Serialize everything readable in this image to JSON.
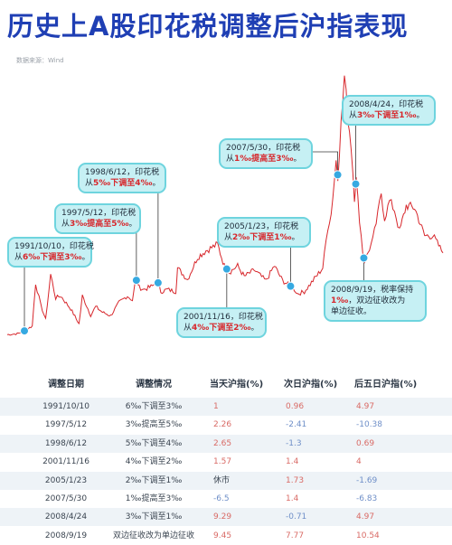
{
  "title": "历史上A股印花税调整后沪指表现",
  "source": "数据来源：Wind",
  "colors": {
    "title": "#1f3fb4",
    "line": "#d7262b",
    "marker": "#36a9e1",
    "bubble_bg": "#c6f0f4",
    "bubble_border": "#6ed4de",
    "up": "#d9534f",
    "down": "#2f6fc4"
  },
  "chart_data": {
    "type": "line",
    "title": "历史上A股印花税调整后沪指表现",
    "xlabel": "",
    "ylabel": "",
    "grid": false,
    "series": [
      {
        "x": [
          "1990/12",
          "1991/6",
          "1991/10",
          "1992/3",
          "1992/5",
          "1992/8",
          "1992/11",
          "1993/2",
          "1993/5",
          "1993/8",
          "1994/2",
          "1994/7",
          "1994/9",
          "1995/2",
          "1995/5",
          "1995/9",
          "1996/2",
          "1996/7",
          "1996/12",
          "1997/3",
          "1997/5",
          "1997/7",
          "1997/10",
          "1998/3",
          "1998/6",
          "1998/8",
          "1998/12",
          "1999/5",
          "1999/6",
          "1999/12",
          "2000/6",
          "2000/11",
          "2001/6",
          "2001/10",
          "2001/11",
          "2002/1",
          "2002/6",
          "2002/10",
          "2003/4",
          "2003/11",
          "2004/4",
          "2004/9",
          "2005/1",
          "2005/4",
          "2005/6",
          "2005/10",
          "2006/4",
          "2006/9",
          "2006/12",
          "2007/2",
          "2007/5",
          "2007/6",
          "2007/8",
          "2007/10",
          "2007/12",
          "2008/2",
          "2008/4",
          "2008/5",
          "2008/7",
          "2008/9",
          "2008/10",
          "2008/12",
          "2009/3",
          "2009/6",
          "2009/8",
          "2009/10",
          "2010/1",
          "2010/4",
          "2010/7",
          "2010/11",
          "2011/4",
          "2011/10",
          "2012/3",
          "2012/9"
        ],
        "values": [
          100,
          120,
          180,
          300,
          1300,
          800,
          450,
          1500,
          950,
          1000,
          700,
          350,
          1000,
          550,
          750,
          620,
          540,
          850,
          1000,
          900,
          1400,
          1200,
          1150,
          1230,
          1350,
          1100,
          1150,
          1100,
          1650,
          1380,
          1900,
          2050,
          2200,
          1700,
          1650,
          1550,
          1700,
          1450,
          1600,
          1350,
          1700,
          1350,
          1250,
          1150,
          1050,
          1100,
          1400,
          1650,
          2600,
          2900,
          4150,
          3800,
          5000,
          6100,
          5200,
          4500,
          3300,
          3700,
          2800,
          2000,
          1800,
          2000,
          2300,
          2900,
          3400,
          2800,
          3200,
          3000,
          2500,
          3100,
          3050,
          2400,
          2400,
          2000
        ]
      }
    ],
    "annotations": [
      {
        "date": "1991/10/10",
        "line1": "1991/10/10，印花税",
        "from": "从",
        "chg": "6‰下调至3‰",
        "end": "。"
      },
      {
        "date": "1997/5/12",
        "line1": "1997/5/12，印花税",
        "from": "从",
        "chg": "3‰提高至5‰",
        "end": "。"
      },
      {
        "date": "1998/6/12",
        "line1": "1998/6/12，印花税",
        "from": "从",
        "chg": "5‰下调至4‰",
        "end": "。"
      },
      {
        "date": "2001/11/16",
        "line1": "2001/11/16，印花税",
        "from": "从",
        "chg": "4‰下调至2‰",
        "end": "。"
      },
      {
        "date": "2005/1/23",
        "line1": "2005/1/23，印花税",
        "from": "从",
        "chg": "2‰下调至1‰",
        "end": "。"
      },
      {
        "date": "2007/5/30",
        "line1": "2007/5/30，印花税",
        "from": "从",
        "chg": "1‰提高至3‰",
        "end": "。"
      },
      {
        "date": "2008/4/24",
        "line1": "2008/4/24，印花税",
        "from": "从",
        "chg": "3‰下调至1‰",
        "end": "。"
      },
      {
        "date": "2008/9/19",
        "line1": "2008/9/19，税率保持",
        "from": "",
        "chg": "1‰",
        "end": "，双边征收改为",
        "line3": "单边征收。"
      }
    ]
  },
  "table": {
    "headers": [
      "调整日期",
      "调整情况",
      "当天沪指(%)",
      "次日沪指(%)",
      "后五日沪指(%)"
    ],
    "rows": [
      [
        "1991/10/10",
        "6‰下调至3‰",
        "1",
        "0.96",
        "4.97"
      ],
      [
        "1997/5/12",
        "3‰提高至5‰",
        "2.26",
        "-2.41",
        "-10.38"
      ],
      [
        "1998/6/12",
        "5‰下调至4‰",
        "2.65",
        "-1.3",
        "0.69"
      ],
      [
        "2001/11/16",
        "4‰下调至2‰",
        "1.57",
        "1.4",
        "4"
      ],
      [
        "2005/1/23",
        "2‰下调至1‰",
        "休市",
        "1.73",
        "-1.69"
      ],
      [
        "2007/5/30",
        "1‰提高至3‰",
        "-6.5",
        "1.4",
        "-6.83"
      ],
      [
        "2008/4/24",
        "3‰下调至1‰",
        "9.29",
        "-0.71",
        "4.97"
      ],
      [
        "2008/9/19",
        "双边征收改为单边征收",
        "9.45",
        "7.77",
        "10.54"
      ]
    ]
  }
}
